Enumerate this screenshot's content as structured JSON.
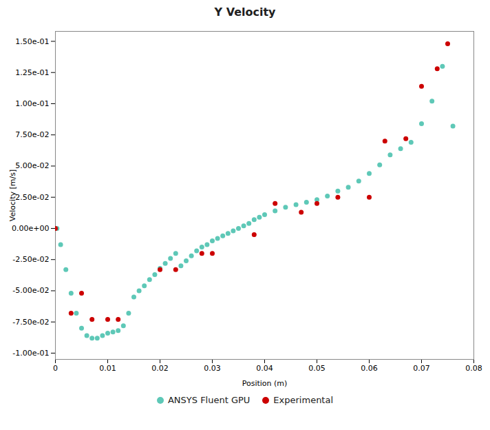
{
  "chart_data": {
    "type": "scatter",
    "title": "Y Velocity",
    "x_label": "Position (m)",
    "y_label": "Velocity [m/s]",
    "xlim": [
      0,
      0.08
    ],
    "ylim": [
      -0.105,
      0.158
    ],
    "xticks": [
      0,
      0.01,
      0.02,
      0.03,
      0.04,
      0.05,
      0.06,
      0.07,
      0.08
    ],
    "yticks": [
      {
        "value": -0.1,
        "label": "-1.00e-01"
      },
      {
        "value": -0.075,
        "label": "-7.50e-02"
      },
      {
        "value": -0.05,
        "label": "-5.00e-02"
      },
      {
        "value": -0.025,
        "label": "-2.50e-02"
      },
      {
        "value": 0.0,
        "label": "0.00e+00"
      },
      {
        "value": 0.025,
        "label": "2.50e-02"
      },
      {
        "value": 0.05,
        "label": "5.00e-02"
      },
      {
        "value": 0.075,
        "label": "7.50e-02"
      },
      {
        "value": 0.1,
        "label": "1.00e-01"
      },
      {
        "value": 0.125,
        "label": "1.25e-01"
      },
      {
        "value": 0.15,
        "label": "1.50e-01"
      }
    ],
    "grid": false,
    "legend": "bottom",
    "series": [
      {
        "name": "ANSYS Fluent GPU",
        "color": "#5EC8B7",
        "marker": "o",
        "x": [
          0.0003,
          0.001,
          0.002,
          0.003,
          0.004,
          0.005,
          0.006,
          0.007,
          0.008,
          0.009,
          0.01,
          0.011,
          0.012,
          0.013,
          0.014,
          0.015,
          0.016,
          0.017,
          0.018,
          0.019,
          0.02,
          0.021,
          0.022,
          0.023,
          0.024,
          0.025,
          0.026,
          0.027,
          0.028,
          0.029,
          0.03,
          0.031,
          0.032,
          0.033,
          0.034,
          0.035,
          0.036,
          0.037,
          0.038,
          0.039,
          0.04,
          0.042,
          0.044,
          0.046,
          0.048,
          0.05,
          0.052,
          0.054,
          0.056,
          0.058,
          0.06,
          0.062,
          0.064,
          0.066,
          0.068,
          0.07,
          0.072,
          0.074,
          0.076
        ],
        "values": [
          0.0,
          -0.013,
          -0.033,
          -0.052,
          -0.068,
          -0.08,
          -0.086,
          -0.088,
          -0.088,
          -0.086,
          -0.084,
          -0.083,
          -0.082,
          -0.078,
          -0.068,
          -0.055,
          -0.05,
          -0.046,
          -0.041,
          -0.037,
          -0.032,
          -0.028,
          -0.024,
          -0.02,
          -0.03,
          -0.026,
          -0.022,
          -0.018,
          -0.015,
          -0.013,
          -0.01,
          -0.008,
          -0.006,
          -0.004,
          -0.002,
          0.0,
          0.002,
          0.004,
          0.007,
          0.009,
          0.011,
          0.014,
          0.017,
          0.019,
          0.021,
          0.023,
          0.026,
          0.03,
          0.033,
          0.038,
          0.044,
          0.051,
          0.059,
          0.064,
          0.069,
          0.084,
          0.102,
          0.13,
          0.082
        ]
      },
      {
        "name": "Experimental",
        "color": "#CC0000",
        "marker": "o",
        "x": [
          0.0,
          0.003,
          0.005,
          0.007,
          0.01,
          0.012,
          0.02,
          0.023,
          0.028,
          0.03,
          0.038,
          0.042,
          0.047,
          0.05,
          0.054,
          0.06,
          0.063,
          0.067,
          0.07,
          0.073,
          0.075
        ],
        "values": [
          0.0,
          -0.068,
          -0.052,
          -0.073,
          -0.073,
          -0.073,
          -0.033,
          -0.033,
          -0.02,
          -0.02,
          -0.005,
          0.02,
          0.013,
          0.02,
          0.025,
          0.025,
          0.07,
          0.072,
          0.114,
          0.128,
          0.148
        ]
      }
    ]
  }
}
